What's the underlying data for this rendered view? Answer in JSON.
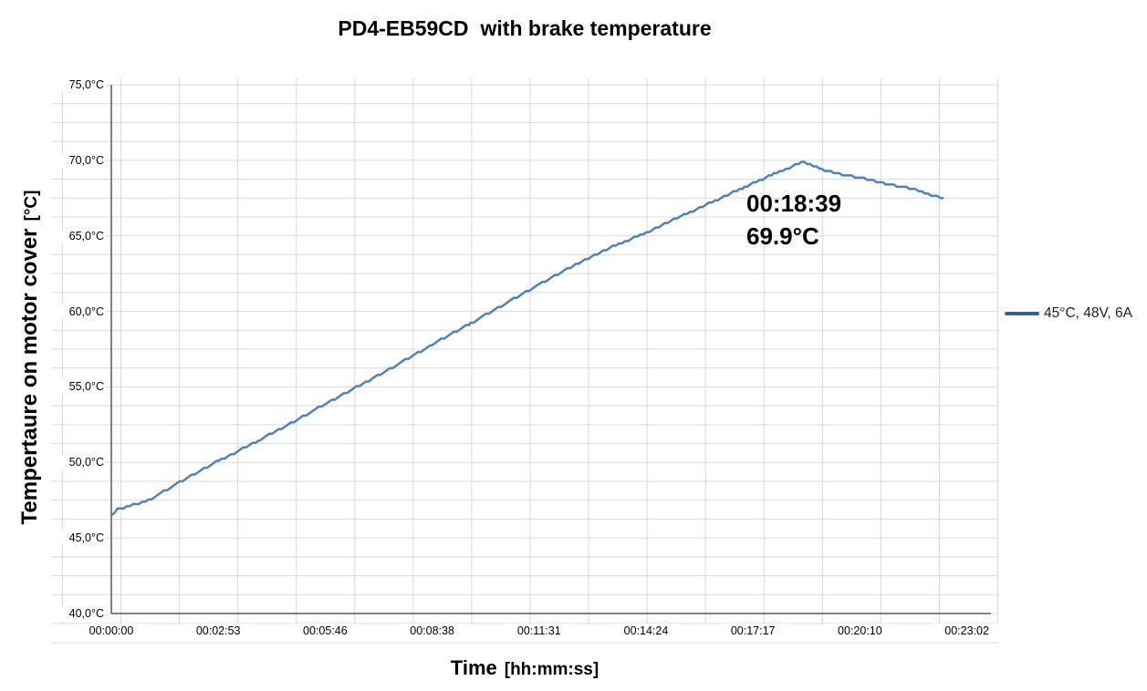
{
  "title": {
    "part1": "PD4-EB59CD",
    "part2": "with brake temperature"
  },
  "y_axis": {
    "title_main": "Tempertaure on motor cover",
    "title_unit": "[°C]",
    "tick_labels": [
      "75,0°C",
      "70,0°C",
      "65,0°C",
      "60,0°C",
      "55,0°C",
      "50,0°C",
      "45,0°C",
      "40,0°C"
    ]
  },
  "x_axis": {
    "title_main": "Time",
    "title_unit": "[hh:mm:ss]",
    "tick_labels": [
      "00:00:00",
      "00:02:53",
      "00:05:46",
      "00:08:38",
      "00:11:31",
      "00:14:24",
      "00:17:17",
      "00:20:10",
      "00:23:02"
    ]
  },
  "legend": {
    "label": "45°C, 48V, 6A"
  },
  "annotation": {
    "time": "00:18:39",
    "temp": "69.9°C"
  },
  "colors": {
    "series_line": "#4f81bd",
    "legend_key": "#3a5f91",
    "grid": "#d9d9d9",
    "axis": "#595959",
    "text": "#000000"
  },
  "chart_data": {
    "type": "line",
    "title": "PD4-EB59CD with brake temperature",
    "xlabel": "Time [hh:mm:ss]",
    "ylabel": "Tempertaure on motor cover [°C]",
    "ylim": [
      40,
      75
    ],
    "y_major_step_c": 5,
    "x_tick_seconds": [
      0,
      173,
      346,
      518,
      691,
      864,
      1037,
      1210,
      1382
    ],
    "grid": "on",
    "legend_position": "right",
    "peak": {
      "time": "00:18:39",
      "temp_c": 69.9
    },
    "series": [
      {
        "name": "45°C, 48V, 6A",
        "points_time_s_temp_c": [
          [
            0,
            46.5
          ],
          [
            10,
            46.9
          ],
          [
            60,
            47.5
          ],
          [
            115,
            48.8
          ],
          [
            173,
            50.1
          ],
          [
            240,
            51.5
          ],
          [
            300,
            52.8
          ],
          [
            346,
            53.9
          ],
          [
            420,
            55.5
          ],
          [
            480,
            56.9
          ],
          [
            518,
            57.8
          ],
          [
            580,
            59.2
          ],
          [
            640,
            60.6
          ],
          [
            691,
            61.8
          ],
          [
            750,
            63.1
          ],
          [
            810,
            64.3
          ],
          [
            864,
            65.2
          ],
          [
            920,
            66.3
          ],
          [
            980,
            67.4
          ],
          [
            1022,
            68.2
          ],
          [
            1070,
            69.1
          ],
          [
            1100,
            69.6
          ],
          [
            1119,
            69.9
          ],
          [
            1147,
            69.4
          ],
          [
            1176,
            69.1
          ],
          [
            1216,
            68.8
          ],
          [
            1254,
            68.4
          ],
          [
            1294,
            68.1
          ],
          [
            1324,
            67.7
          ],
          [
            1343,
            67.5
          ]
        ]
      }
    ]
  }
}
